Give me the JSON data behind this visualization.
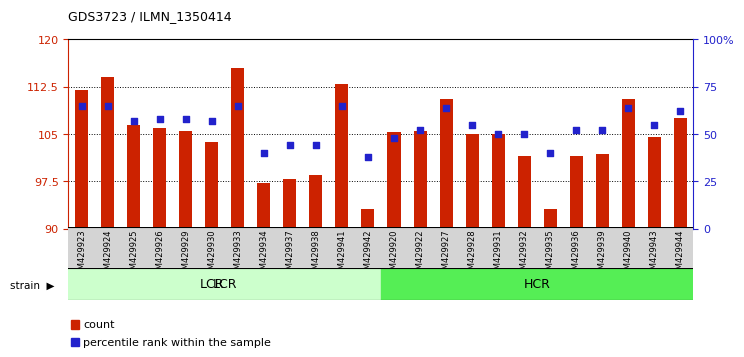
{
  "title": "GDS3723 / ILMN_1350414",
  "categories": [
    "GSM429923",
    "GSM429924",
    "GSM429925",
    "GSM429926",
    "GSM429929",
    "GSM429930",
    "GSM429933",
    "GSM429934",
    "GSM429937",
    "GSM429938",
    "GSM429941",
    "GSM429942",
    "GSM429920",
    "GSM429922",
    "GSM429927",
    "GSM429928",
    "GSM429931",
    "GSM429932",
    "GSM429935",
    "GSM429936",
    "GSM429939",
    "GSM429940",
    "GSM429943",
    "GSM429944"
  ],
  "bar_values": [
    112.0,
    114.0,
    106.5,
    106.0,
    105.5,
    103.8,
    115.5,
    97.2,
    97.8,
    98.5,
    113.0,
    93.2,
    105.3,
    105.5,
    110.5,
    105.0,
    105.0,
    101.5,
    93.2,
    101.5,
    101.8,
    110.5,
    104.5,
    107.5
  ],
  "percentile_values": [
    65,
    65,
    57,
    58,
    58,
    57,
    65,
    40,
    44,
    44,
    65,
    38,
    48,
    52,
    64,
    55,
    50,
    50,
    40,
    52,
    52,
    64,
    55,
    62
  ],
  "bar_color": "#cc2200",
  "dot_color": "#2222cc",
  "ylim_left": [
    90,
    120
  ],
  "ylim_right": [
    0,
    100
  ],
  "yticks_left": [
    90,
    97.5,
    105,
    112.5,
    120
  ],
  "yticks_right": [
    0,
    25,
    50,
    75,
    100
  ],
  "ytick_labels_left": [
    "90",
    "97.5",
    "105",
    "112.5",
    "120"
  ],
  "ytick_labels_right": [
    "0",
    "25",
    "50",
    "75",
    "100%"
  ],
  "lcr_label": "LCR",
  "hcr_label": "HCR",
  "strain_label": "strain",
  "legend_bar_label": "count",
  "legend_dot_label": "percentile rank within the sample",
  "lcr_count": 12,
  "hcr_count": 12,
  "lcr_color": "#ccffcc",
  "hcr_color": "#55ee55",
  "plot_bg": "#ffffff"
}
